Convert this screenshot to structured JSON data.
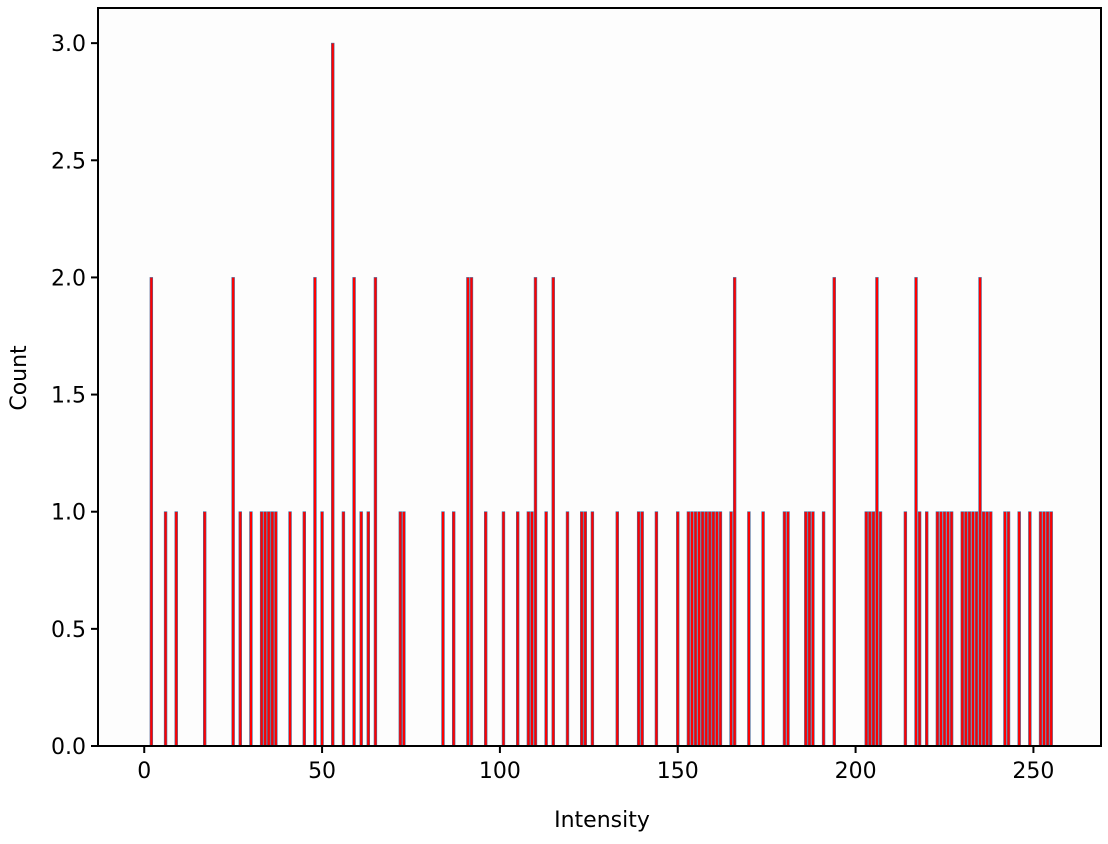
{
  "chart_data": {
    "type": "bar",
    "title": "",
    "xlabel": "Intensity",
    "ylabel": "Count",
    "xlim": [
      -13,
      269
    ],
    "ylim": [
      0,
      3.15
    ],
    "xticks": [
      0,
      50,
      100,
      150,
      200,
      250
    ],
    "xtick_labels": [
      "0",
      "50",
      "100",
      "150",
      "200",
      "250"
    ],
    "yticks": [
      0.0,
      0.5,
      1.0,
      1.5,
      2.0,
      2.5,
      3.0
    ],
    "ytick_labels": [
      "0.0",
      "0.5",
      "1.0",
      "1.5",
      "2.0",
      "2.5",
      "3.0"
    ],
    "grid": false,
    "bar_color": "#ff0000",
    "bar_edge_color": "#4a6a9a",
    "points": [
      {
        "x": 2,
        "y": 2
      },
      {
        "x": 6,
        "y": 1
      },
      {
        "x": 9,
        "y": 1
      },
      {
        "x": 17,
        "y": 1
      },
      {
        "x": 25,
        "y": 2
      },
      {
        "x": 27,
        "y": 1
      },
      {
        "x": 30,
        "y": 1
      },
      {
        "x": 33,
        "y": 1
      },
      {
        "x": 34,
        "y": 1
      },
      {
        "x": 35,
        "y": 1
      },
      {
        "x": 36,
        "y": 1
      },
      {
        "x": 37,
        "y": 1
      },
      {
        "x": 41,
        "y": 1
      },
      {
        "x": 45,
        "y": 1
      },
      {
        "x": 48,
        "y": 2
      },
      {
        "x": 50,
        "y": 1
      },
      {
        "x": 53,
        "y": 3
      },
      {
        "x": 56,
        "y": 1
      },
      {
        "x": 59,
        "y": 2
      },
      {
        "x": 61,
        "y": 1
      },
      {
        "x": 63,
        "y": 1
      },
      {
        "x": 65,
        "y": 2
      },
      {
        "x": 72,
        "y": 1
      },
      {
        "x": 73,
        "y": 1
      },
      {
        "x": 84,
        "y": 1
      },
      {
        "x": 87,
        "y": 1
      },
      {
        "x": 91,
        "y": 2
      },
      {
        "x": 92,
        "y": 2
      },
      {
        "x": 96,
        "y": 1
      },
      {
        "x": 101,
        "y": 1
      },
      {
        "x": 105,
        "y": 1
      },
      {
        "x": 108,
        "y": 1
      },
      {
        "x": 109,
        "y": 1
      },
      {
        "x": 110,
        "y": 2
      },
      {
        "x": 113,
        "y": 1
      },
      {
        "x": 115,
        "y": 2
      },
      {
        "x": 119,
        "y": 1
      },
      {
        "x": 123,
        "y": 1
      },
      {
        "x": 124,
        "y": 1
      },
      {
        "x": 126,
        "y": 1
      },
      {
        "x": 133,
        "y": 1
      },
      {
        "x": 139,
        "y": 1
      },
      {
        "x": 140,
        "y": 1
      },
      {
        "x": 144,
        "y": 1
      },
      {
        "x": 150,
        "y": 1
      },
      {
        "x": 153,
        "y": 1
      },
      {
        "x": 154,
        "y": 1
      },
      {
        "x": 155,
        "y": 1
      },
      {
        "x": 156,
        "y": 1
      },
      {
        "x": 157,
        "y": 1
      },
      {
        "x": 158,
        "y": 1
      },
      {
        "x": 159,
        "y": 1
      },
      {
        "x": 160,
        "y": 1
      },
      {
        "x": 161,
        "y": 1
      },
      {
        "x": 162,
        "y": 1
      },
      {
        "x": 165,
        "y": 1
      },
      {
        "x": 166,
        "y": 2
      },
      {
        "x": 170,
        "y": 1
      },
      {
        "x": 174,
        "y": 1
      },
      {
        "x": 180,
        "y": 1
      },
      {
        "x": 181,
        "y": 1
      },
      {
        "x": 186,
        "y": 1
      },
      {
        "x": 187,
        "y": 1
      },
      {
        "x": 188,
        "y": 1
      },
      {
        "x": 191,
        "y": 1
      },
      {
        "x": 194,
        "y": 2
      },
      {
        "x": 203,
        "y": 1
      },
      {
        "x": 204,
        "y": 1
      },
      {
        "x": 205,
        "y": 1
      },
      {
        "x": 206,
        "y": 2
      },
      {
        "x": 207,
        "y": 1
      },
      {
        "x": 214,
        "y": 1
      },
      {
        "x": 217,
        "y": 2
      },
      {
        "x": 218,
        "y": 1
      },
      {
        "x": 220,
        "y": 1
      },
      {
        "x": 223,
        "y": 1
      },
      {
        "x": 224,
        "y": 1
      },
      {
        "x": 225,
        "y": 1
      },
      {
        "x": 226,
        "y": 1
      },
      {
        "x": 227,
        "y": 1
      },
      {
        "x": 230,
        "y": 1
      },
      {
        "x": 231,
        "y": 1
      },
      {
        "x": 232,
        "y": 1
      },
      {
        "x": 233,
        "y": 1
      },
      {
        "x": 234,
        "y": 1
      },
      {
        "x": 235,
        "y": 2
      },
      {
        "x": 236,
        "y": 1
      },
      {
        "x": 237,
        "y": 1
      },
      {
        "x": 238,
        "y": 1
      },
      {
        "x": 242,
        "y": 1
      },
      {
        "x": 243,
        "y": 1
      },
      {
        "x": 246,
        "y": 1
      },
      {
        "x": 249,
        "y": 1
      },
      {
        "x": 252,
        "y": 1
      },
      {
        "x": 253,
        "y": 1
      },
      {
        "x": 254,
        "y": 1
      },
      {
        "x": 255,
        "y": 1
      }
    ]
  }
}
